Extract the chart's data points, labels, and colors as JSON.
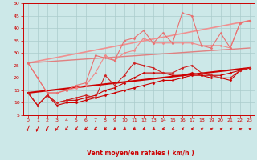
{
  "xlabel": "Vent moyen/en rafales ( km/h )",
  "xlim": [
    -0.5,
    23.5
  ],
  "ylim": [
    5,
    50
  ],
  "yticks": [
    5,
    10,
    15,
    20,
    25,
    30,
    35,
    40,
    45,
    50
  ],
  "xticks": [
    0,
    1,
    2,
    3,
    4,
    5,
    6,
    7,
    8,
    9,
    10,
    11,
    12,
    13,
    14,
    15,
    16,
    17,
    18,
    19,
    20,
    21,
    22,
    23
  ],
  "bg_color": "#cce8e8",
  "grid_color": "#aacccc",
  "series": [
    {
      "x": [
        0,
        1,
        2,
        3,
        4,
        5,
        6,
        7,
        8,
        9,
        10,
        11,
        12,
        13,
        14,
        15,
        16,
        17,
        18,
        19,
        20,
        21,
        22,
        23
      ],
      "y": [
        14,
        9,
        13,
        9,
        10,
        10,
        11,
        12,
        13,
        14,
        15,
        16,
        17,
        18,
        19,
        19,
        20,
        21,
        21,
        21,
        21,
        22,
        23,
        24
      ],
      "color": "#cc0000",
      "marker": "D",
      "lw": 0.8,
      "ms": 1.5
    },
    {
      "x": [
        0,
        1,
        2,
        3,
        4,
        5,
        6,
        7,
        8,
        9,
        10,
        11,
        12,
        13,
        14,
        15,
        16,
        17,
        18,
        19,
        20,
        21,
        22,
        23
      ],
      "y": [
        14,
        9,
        13,
        10,
        11,
        11,
        12,
        13,
        15,
        16,
        18,
        20,
        22,
        22,
        22,
        21,
        21,
        22,
        21,
        20,
        20,
        19,
        23,
        24
      ],
      "color": "#cc0000",
      "marker": "D",
      "lw": 0.8,
      "ms": 1.5
    },
    {
      "x": [
        0,
        1,
        2,
        3,
        4,
        5,
        6,
        7,
        8,
        9,
        10,
        11,
        12,
        13,
        14,
        15,
        16,
        17,
        18,
        19,
        20,
        21,
        22,
        23
      ],
      "y": [
        14,
        9,
        13,
        10,
        11,
        12,
        13,
        12,
        21,
        17,
        21,
        26,
        25,
        24,
        22,
        22,
        24,
        25,
        22,
        21,
        20,
        20,
        23,
        24
      ],
      "color": "#cc2222",
      "marker": "D",
      "lw": 0.8,
      "ms": 1.5
    },
    {
      "x": [
        0,
        1,
        2,
        3,
        4,
        5,
        6,
        7,
        8,
        9,
        10,
        11,
        12,
        13,
        14,
        15,
        16,
        17,
        18,
        19,
        20,
        21,
        22,
        23
      ],
      "y": [
        26,
        20,
        14,
        14,
        15,
        16,
        17,
        22,
        29,
        27,
        30,
        31,
        36,
        34,
        34,
        34,
        34,
        34,
        33,
        33,
        33,
        32,
        42,
        43
      ],
      "color": "#f08888",
      "marker": "D",
      "lw": 0.8,
      "ms": 1.5
    },
    {
      "x": [
        0,
        1,
        2,
        3,
        4,
        5,
        6,
        7,
        8,
        9,
        10,
        11,
        12,
        13,
        14,
        15,
        16,
        17,
        18,
        19,
        20,
        21,
        22,
        23
      ],
      "y": [
        26,
        20,
        14,
        14,
        15,
        17,
        18,
        29,
        28,
        27,
        35,
        36,
        39,
        34,
        38,
        34,
        46,
        45,
        33,
        32,
        38,
        32,
        42,
        43
      ],
      "color": "#e87070",
      "marker": "D",
      "lw": 0.8,
      "ms": 1.5
    },
    {
      "x": [
        0,
        23
      ],
      "y": [
        14,
        24
      ],
      "color": "#cc0000",
      "marker": null,
      "lw": 1.5,
      "ms": 0
    },
    {
      "x": [
        0,
        23
      ],
      "y": [
        26,
        43
      ],
      "color": "#f09090",
      "marker": null,
      "lw": 1.2,
      "ms": 0
    },
    {
      "x": [
        0,
        23
      ],
      "y": [
        26,
        32
      ],
      "color": "#e08080",
      "marker": null,
      "lw": 1.0,
      "ms": 0
    }
  ],
  "arrows": {
    "x": [
      0,
      1,
      2,
      3,
      4,
      5,
      6,
      7,
      8,
      9,
      10,
      11,
      12,
      13,
      14,
      15,
      16,
      17,
      18,
      19,
      20,
      21,
      22,
      23
    ],
    "angles_deg": [
      225,
      225,
      220,
      215,
      210,
      210,
      205,
      205,
      200,
      200,
      195,
      195,
      190,
      190,
      185,
      185,
      180,
      180,
      175,
      175,
      175,
      175,
      170,
      170
    ],
    "color": "#cc0000",
    "size": 4.5
  }
}
